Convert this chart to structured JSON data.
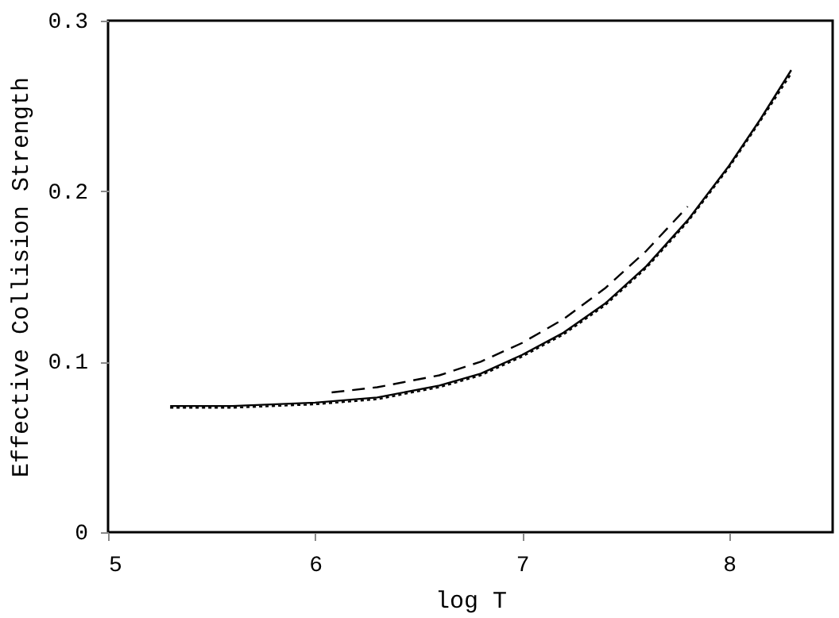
{
  "chart_data": {
    "type": "line",
    "xlabel": "log T",
    "ylabel": "Effective Collision Strength",
    "xlim": [
      5,
      8.5
    ],
    "ylim": [
      0,
      0.3
    ],
    "xticks": [
      5,
      6,
      7,
      8
    ],
    "yticks": [
      0,
      0.1,
      0.2,
      0.3
    ],
    "grid": false,
    "marker": "none",
    "series": [
      {
        "color": "#000000",
        "line_style": "solid",
        "x": [
          5.3,
          5.6,
          6.0,
          6.3,
          6.6,
          6.8,
          7.0,
          7.2,
          7.4,
          7.6,
          7.8,
          8.0,
          8.15,
          8.3
        ],
        "values": [
          0.074,
          0.074,
          0.076,
          0.079,
          0.086,
          0.093,
          0.104,
          0.117,
          0.134,
          0.156,
          0.183,
          0.215,
          0.242,
          0.271
        ]
      },
      {
        "color": "#000000",
        "line_style": "dotted",
        "x": [
          5.3,
          5.6,
          6.0,
          6.3,
          6.6,
          6.8,
          7.0,
          7.2,
          7.4,
          7.6,
          7.8,
          8.0,
          8.15,
          8.3
        ],
        "values": [
          0.073,
          0.073,
          0.075,
          0.078,
          0.085,
          0.092,
          0.103,
          0.116,
          0.133,
          0.155,
          0.182,
          0.214,
          0.241,
          0.269
        ]
      },
      {
        "color": "#000000",
        "line_style": "dashed",
        "x": [
          6.08,
          6.3,
          6.6,
          6.8,
          7.0,
          7.2,
          7.4,
          7.6,
          7.8
        ],
        "values": [
          0.082,
          0.085,
          0.092,
          0.1,
          0.111,
          0.125,
          0.143,
          0.165,
          0.191
        ]
      }
    ]
  }
}
